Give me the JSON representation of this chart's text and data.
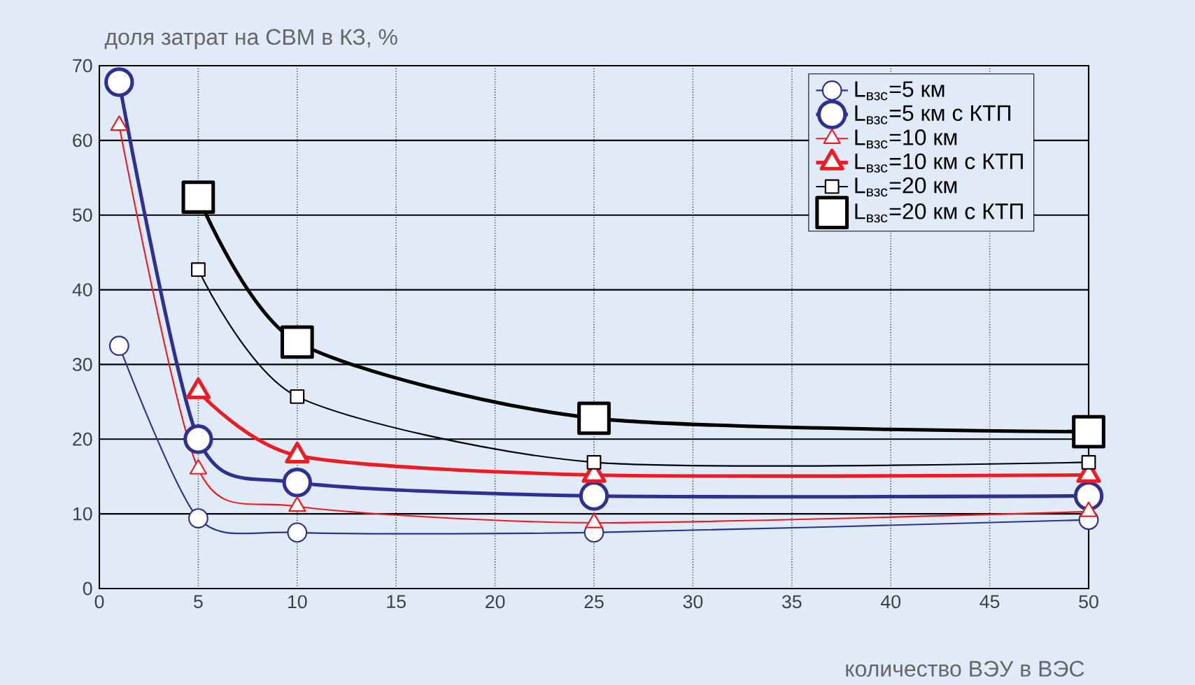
{
  "chart_data": {
    "type": "line",
    "xlabel": "количество ВЭУ в ВЭС",
    "ylabel": "доля затрат на СВМ в КЗ, %",
    "x": [
      1,
      5,
      10,
      25,
      50
    ],
    "series": [
      {
        "name": "L$_{взс}$=5 км",
        "color": "#2e3192",
        "marker": "circle",
        "values": [
          32.5,
          9.4,
          7.5,
          7.5,
          9.2
        ]
      },
      {
        "name": "L$_{взс}$=5 км  с КТП",
        "color": "#2e3192",
        "marker": "circle",
        "values": [
          67.8,
          20,
          14.2,
          12.4,
          12.4
        ]
      },
      {
        "name": "L$_{взс}$=10 км",
        "color": "#ed1c24",
        "marker": "triangle",
        "values": [
          62,
          16,
          11,
          8.8,
          10.3
        ]
      },
      {
        "name": "L$_{взс}$=10 км  с КТП",
        "color": "#ed1c24",
        "marker": "triangle",
        "values": [
          null,
          26.4,
          17.8,
          15.2,
          15.2
        ]
      },
      {
        "name": "L$_{взс}$=20 км",
        "color": "#000000",
        "marker": "square",
        "values": [
          null,
          42.7,
          25.7,
          16.9,
          16.9
        ]
      },
      {
        "name": "L$_{взс}$=20 км  с КТП",
        "color": "#000000",
        "marker": "square",
        "values": [
          null,
          52.4,
          33,
          22.8,
          21
        ]
      }
    ],
    "xlim": [
      0,
      50
    ],
    "ylim": [
      0,
      70
    ],
    "xticks": [
      0,
      5,
      10,
      15,
      20,
      25,
      30,
      35,
      40,
      45,
      50
    ],
    "yticks": [
      0,
      10,
      20,
      30,
      40,
      50,
      60,
      70
    ],
    "grid": true,
    "legend": "top right"
  }
}
